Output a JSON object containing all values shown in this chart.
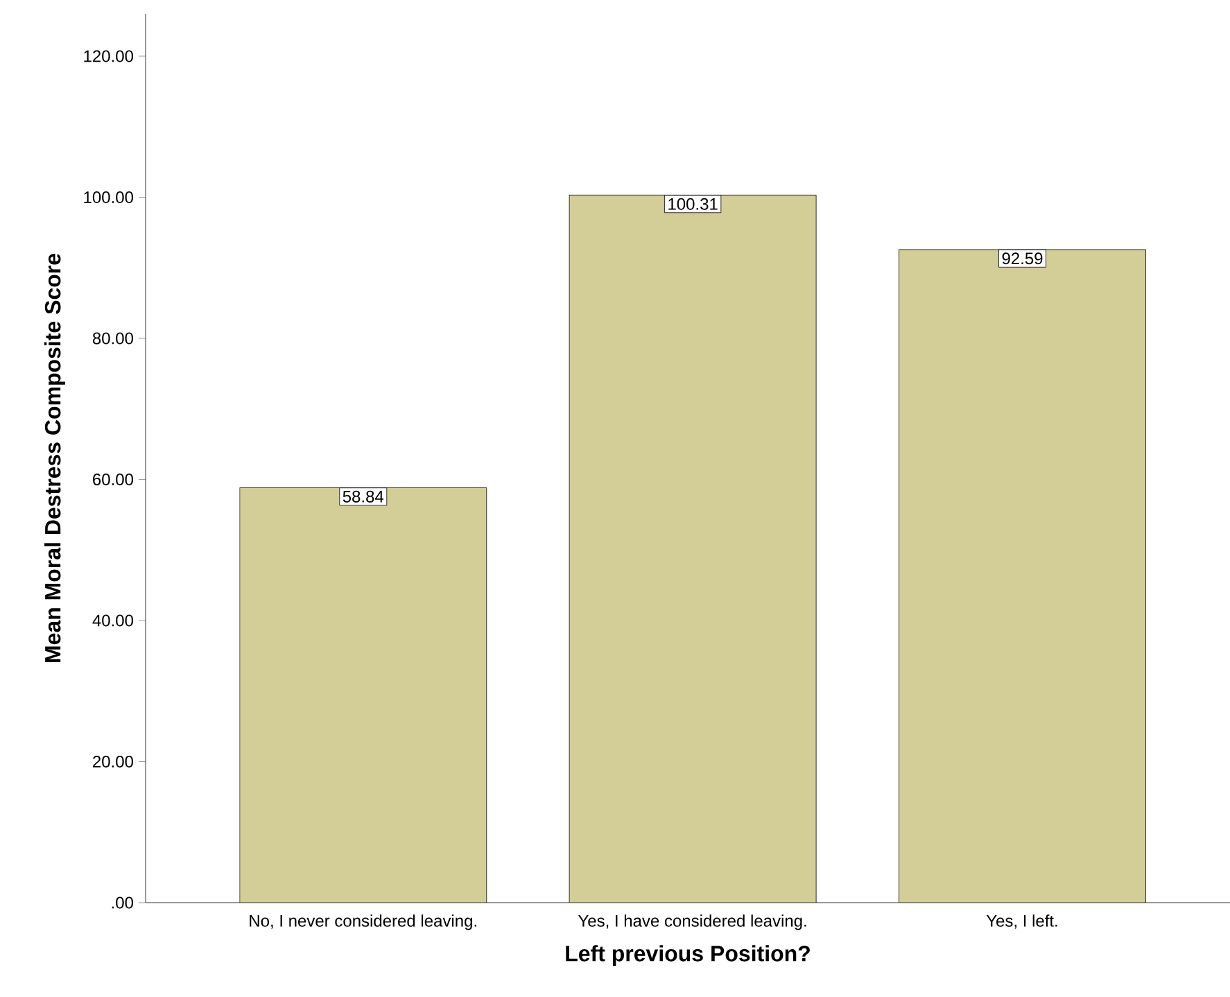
{
  "chart_data": {
    "type": "bar",
    "xlabel": "Left previous Position?",
    "ylabel": "Mean Moral Destress Composite Score",
    "categories": [
      "No, I never considered leaving.",
      "Yes, I have considered leaving.",
      "Yes, I left."
    ],
    "values": [
      58.84,
      100.31,
      92.59
    ],
    "color": "#d3ce97",
    "data_labels": true,
    "ylim": [
      0,
      126
    ],
    "yticks": [
      {
        "value": 0,
        "label": ".00"
      },
      {
        "value": 20,
        "label": "20.00"
      },
      {
        "value": 40,
        "label": "40.00"
      },
      {
        "value": 60,
        "label": "60.00"
      },
      {
        "value": 80,
        "label": "80.00"
      },
      {
        "value": 100,
        "label": "100.00"
      },
      {
        "value": 120,
        "label": "120.00"
      }
    ],
    "grid": false
  }
}
